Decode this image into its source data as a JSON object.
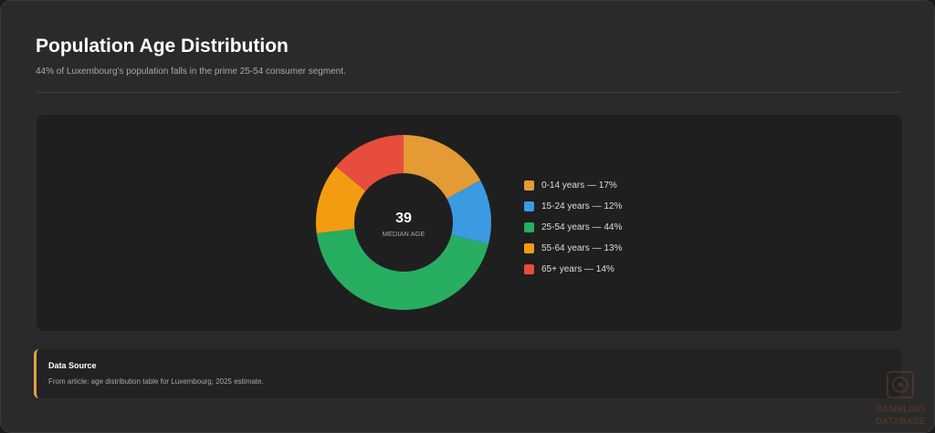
{
  "header": {
    "title": "Population Age Distribution",
    "subtitle": "44% of Luxembourg's population falls in the prime 25-54 consumer segment."
  },
  "chart_data": {
    "type": "pie",
    "variant": "donut",
    "categories": [
      "0-14 years",
      "15-24 years",
      "25-54 years",
      "55-64 years",
      "65+ years"
    ],
    "values": [
      17,
      12,
      44,
      13,
      14
    ],
    "unit": "%",
    "colors": [
      "#e49a35",
      "#3b9ae1",
      "#27ae60",
      "#f39c12",
      "#e74c3c"
    ],
    "center": {
      "value": "39",
      "label": "MEDIAN AGE"
    },
    "legend_items": [
      "0-14 years — 17%",
      "15-24 years — 12%",
      "25-54 years — 44%",
      "55-64 years — 13%",
      "65+ years — 14%"
    ],
    "legend_position": "right"
  },
  "source": {
    "title": "Data Source",
    "text": "From article: age distribution table for Luxembourg, 2025 estimate."
  },
  "watermark": {
    "text": "GAMBLING DATABASE"
  }
}
